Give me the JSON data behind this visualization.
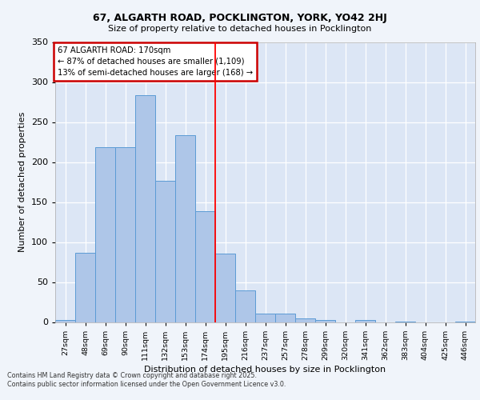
{
  "title_line1": "67, ALGARTH ROAD, POCKLINGTON, YORK, YO42 2HJ",
  "title_line2": "Size of property relative to detached houses in Pocklington",
  "xlabel": "Distribution of detached houses by size in Pocklington",
  "ylabel": "Number of detached properties",
  "bar_labels": [
    "27sqm",
    "48sqm",
    "69sqm",
    "90sqm",
    "111sqm",
    "132sqm",
    "153sqm",
    "174sqm",
    "195sqm",
    "216sqm",
    "237sqm",
    "257sqm",
    "278sqm",
    "299sqm",
    "320sqm",
    "341sqm",
    "362sqm",
    "383sqm",
    "404sqm",
    "425sqm",
    "446sqm"
  ],
  "bar_values": [
    3,
    87,
    219,
    219,
    284,
    177,
    234,
    139,
    86,
    40,
    11,
    11,
    5,
    3,
    0,
    3,
    0,
    1,
    0,
    0,
    1
  ],
  "bar_color": "#aec6e8",
  "bar_edgecolor": "#5b9bd5",
  "bg_color": "#dce6f5",
  "grid_color": "#ffffff",
  "vline_x": 7.5,
  "vline_color": "#ff0000",
  "annotation_title": "67 ALGARTH ROAD: 170sqm",
  "annotation_line2": "← 87% of detached houses are smaller (1,109)",
  "annotation_line3": "13% of semi-detached houses are larger (168) →",
  "annotation_box_facecolor": "#ffffff",
  "annotation_box_edgecolor": "#cc0000",
  "ylim": [
    0,
    350
  ],
  "yticks": [
    0,
    50,
    100,
    150,
    200,
    250,
    300,
    350
  ],
  "footer_line1": "Contains HM Land Registry data © Crown copyright and database right 2025.",
  "footer_line2": "Contains public sector information licensed under the Open Government Licence v3.0.",
  "fig_facecolor": "#f0f4fa"
}
